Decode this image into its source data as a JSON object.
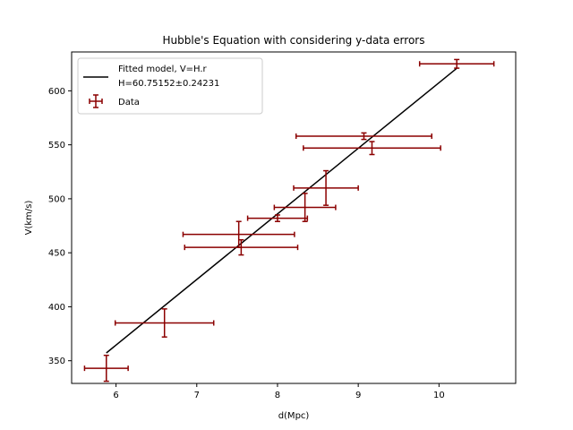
{
  "chart_data": {
    "type": "scatter",
    "title": "Hubble's Equation with considering y-data errors",
    "xlabel": "d(Mpc)",
    "ylabel": "V(km/s)",
    "xlim": [
      5.45,
      10.95
    ],
    "ylim": [
      329,
      636
    ],
    "xticks": [
      6,
      7,
      8,
      9,
      10
    ],
    "yticks": [
      350,
      400,
      450,
      500,
      550,
      600
    ],
    "grid": false,
    "legend_position": "top-left",
    "colors": {
      "model": "#000000",
      "data": "#8b0000"
    },
    "model": {
      "name_line1": "Fitted model, V=H.r",
      "name_line2": "H=60.75152±0.24231",
      "slope": 60.75152,
      "x": [
        5.88,
        10.22
      ]
    },
    "data_series": {
      "name": "Data",
      "points": [
        {
          "x": 5.88,
          "y": 343,
          "xerr": 0.27,
          "yerr": 12
        },
        {
          "x": 6.6,
          "y": 385,
          "xerr": 0.61,
          "yerr": 13
        },
        {
          "x": 7.52,
          "y": 467,
          "xerr": 0.69,
          "yerr": 12
        },
        {
          "x": 7.55,
          "y": 455,
          "xerr": 0.7,
          "yerr": 7
        },
        {
          "x": 8.0,
          "y": 482,
          "xerr": 0.37,
          "yerr": 3
        },
        {
          "x": 8.34,
          "y": 492,
          "xerr": 0.38,
          "yerr": 13
        },
        {
          "x": 8.6,
          "y": 510,
          "xerr": 0.4,
          "yerr": 16
        },
        {
          "x": 9.07,
          "y": 558,
          "xerr": 0.84,
          "yerr": 3
        },
        {
          "x": 9.17,
          "y": 547,
          "xerr": 0.85,
          "yerr": 6
        },
        {
          "x": 10.22,
          "y": 625,
          "xerr": 0.46,
          "yerr": 4
        }
      ]
    }
  }
}
